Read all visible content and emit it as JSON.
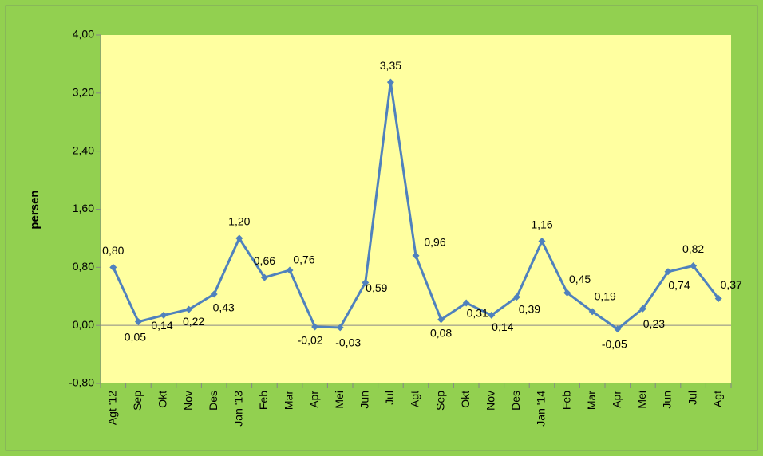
{
  "chart_data": {
    "type": "line",
    "y_label": "persen",
    "categories": [
      "Agt '12",
      "Sep",
      "Okt",
      "Nov",
      "Des",
      "Jan '13",
      "Feb",
      "Mar",
      "Apr",
      "Mei",
      "Jun",
      "Jul",
      "Agt",
      "Sep",
      "Okt",
      "Nov",
      "Des",
      "Jan '14",
      "Feb",
      "Mar",
      "Apr",
      "Mei",
      "Jun",
      "Jul",
      "Agt"
    ],
    "values": [
      0.8,
      0.05,
      0.14,
      0.22,
      0.43,
      1.2,
      0.66,
      0.76,
      -0.02,
      -0.03,
      0.59,
      3.35,
      0.96,
      0.08,
      0.31,
      0.14,
      0.39,
      1.16,
      0.45,
      0.19,
      -0.05,
      0.23,
      0.74,
      0.82,
      0.37
    ],
    "value_labels": [
      "0,80",
      "0,05",
      "0,14",
      "0,22",
      "0,43",
      "1,20",
      "0,66",
      "0,76",
      "-0,02",
      "-0,03",
      "0,59",
      "3,35",
      "0,96",
      "0,08",
      "0,31",
      "0,14",
      "0,39",
      "1,16",
      "0,45",
      "0,19",
      "-0,05",
      "0,23",
      "0,74",
      "0,82",
      "0,37"
    ],
    "color": "#4f81bd",
    "ylim": [
      -0.8,
      4.0
    ],
    "yticks": [
      {
        "value": -0.8,
        "label": "-0,80"
      },
      {
        "value": 0,
        "label": "0,00"
      },
      {
        "value": 0.8,
        "label": "0,80"
      },
      {
        "value": 1.6,
        "label": "1,60"
      },
      {
        "value": 2.4,
        "label": "2,40"
      },
      {
        "value": 3.2,
        "label": "3,20"
      },
      {
        "value": 4.0,
        "label": "4,00"
      }
    ],
    "grid": false
  }
}
